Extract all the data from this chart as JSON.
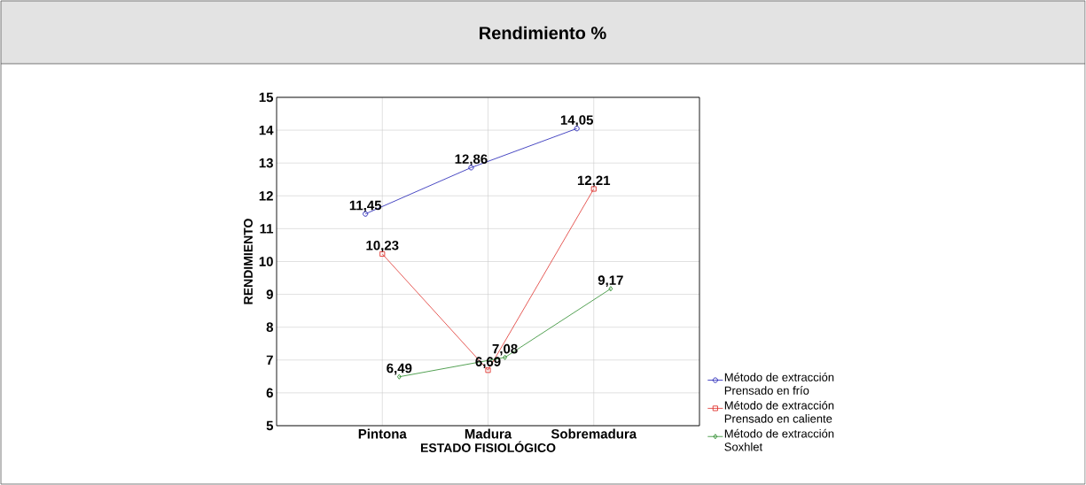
{
  "chart_data": {
    "type": "line",
    "title": "Rendimiento %",
    "xlabel": "ESTADO FISIOLÓGICO",
    "ylabel": "RENDIMIENTO",
    "categories": [
      "Pintona",
      "Madura",
      "Sobremadura"
    ],
    "series": [
      {
        "name": "Método de extracción Prensado en frío",
        "color": "#1c1cb4",
        "marker": "circle",
        "values": [
          11.45,
          12.86,
          14.05
        ],
        "value_labels": [
          "11,45",
          "12,86",
          "14,05"
        ]
      },
      {
        "name": "Método de extracción Prensado en caliente",
        "color": "#e0342f",
        "marker": "square",
        "values": [
          10.23,
          6.69,
          12.21
        ],
        "value_labels": [
          "10,23",
          "6,69",
          "12,21"
        ]
      },
      {
        "name": "Método de extracción Soxhlet",
        "color": "#2a8a2a",
        "marker": "diamond",
        "values": [
          6.49,
          7.08,
          9.17
        ],
        "value_labels": [
          "6,49",
          "7,08",
          "9,17"
        ]
      }
    ],
    "ylim": [
      5,
      15
    ],
    "yticks": [
      5,
      6,
      7,
      8,
      9,
      10,
      11,
      12,
      13,
      14,
      15
    ],
    "grid": true,
    "legend": "bottom right",
    "line_style": "solid"
  }
}
